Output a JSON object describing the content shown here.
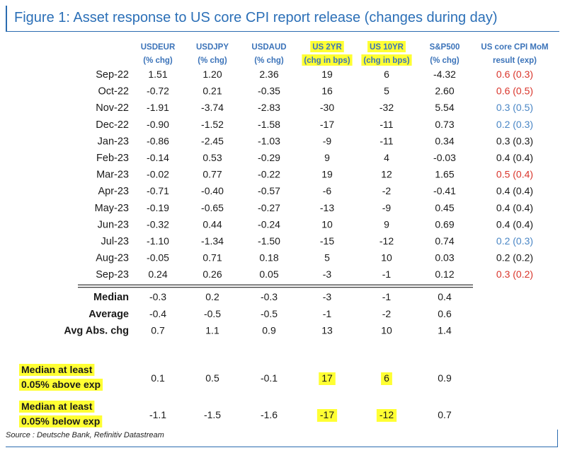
{
  "title": "Figure 1: Asset response to US core CPI report release (changes during day)",
  "source": "Source : Deutsche Bank, Refinitiv Datastream",
  "colors": {
    "title": "#2b6fb7",
    "header": "#3b73b9",
    "highlight": "#ffff33",
    "above_exp": "#d9352b",
    "below_exp": "#4a86c5",
    "in_line": "#1a1a1a"
  },
  "chart_data": {
    "type": "table",
    "columns": [
      {
        "name": "USDEUR",
        "unit": "(% chg)",
        "highlight": false
      },
      {
        "name": "USDJPY",
        "unit": "(% chg)",
        "highlight": false
      },
      {
        "name": "USDAUD",
        "unit": "(% chg)",
        "highlight": false
      },
      {
        "name": "US 2YR",
        "unit": "(chg in bps)",
        "highlight": true
      },
      {
        "name": "US 10YR",
        "unit": "(chg in bps)",
        "highlight": true
      },
      {
        "name": "S&P500",
        "unit": "(% chg)",
        "highlight": false
      },
      {
        "name": "US core CPI MoM",
        "unit": "result (exp)",
        "highlight": false
      }
    ],
    "rows": [
      {
        "label": "Sep-22",
        "values": [
          "1.51",
          "1.20",
          "2.36",
          "19",
          "6",
          "-4.32",
          "0.6 (0.3)"
        ],
        "cpi_vs_exp": "above"
      },
      {
        "label": "Oct-22",
        "values": [
          "-0.72",
          "0.21",
          "-0.35",
          "16",
          "5",
          "2.60",
          "0.6 (0.5)"
        ],
        "cpi_vs_exp": "above"
      },
      {
        "label": "Nov-22",
        "values": [
          "-1.91",
          "-3.74",
          "-2.83",
          "-30",
          "-32",
          "5.54",
          "0.3 (0.5)"
        ],
        "cpi_vs_exp": "below"
      },
      {
        "label": "Dec-22",
        "values": [
          "-0.90",
          "-1.52",
          "-1.58",
          "-17",
          "-11",
          "0.73",
          "0.2 (0.3)"
        ],
        "cpi_vs_exp": "below"
      },
      {
        "label": "Jan-23",
        "values": [
          "-0.86",
          "-2.45",
          "-1.03",
          "-9",
          "-11",
          "0.34",
          "0.3 (0.3)"
        ],
        "cpi_vs_exp": "inline"
      },
      {
        "label": "Feb-23",
        "values": [
          "-0.14",
          "0.53",
          "-0.29",
          "9",
          "4",
          "-0.03",
          "0.4 (0.4)"
        ],
        "cpi_vs_exp": "inline"
      },
      {
        "label": "Mar-23",
        "values": [
          "-0.02",
          "0.77",
          "-0.22",
          "19",
          "12",
          "1.65",
          "0.5 (0.4)"
        ],
        "cpi_vs_exp": "above"
      },
      {
        "label": "Apr-23",
        "values": [
          "-0.71",
          "-0.40",
          "-0.57",
          "-6",
          "-2",
          "-0.41",
          "0.4 (0.4)"
        ],
        "cpi_vs_exp": "inline"
      },
      {
        "label": "May-23",
        "values": [
          "-0.19",
          "-0.65",
          "-0.27",
          "-13",
          "-9",
          "0.45",
          "0.4 (0.4)"
        ],
        "cpi_vs_exp": "inline"
      },
      {
        "label": "Jun-23",
        "values": [
          "-0.32",
          "0.44",
          "-0.24",
          "10",
          "9",
          "0.69",
          "0.4 (0.4)"
        ],
        "cpi_vs_exp": "inline"
      },
      {
        "label": "Jul-23",
        "values": [
          "-1.10",
          "-1.34",
          "-1.50",
          "-15",
          "-12",
          "0.74",
          "0.2 (0.3)"
        ],
        "cpi_vs_exp": "below"
      },
      {
        "label": "Aug-23",
        "values": [
          "-0.05",
          "0.71",
          "0.18",
          "5",
          "10",
          "0.03",
          "0.2 (0.2)"
        ],
        "cpi_vs_exp": "inline"
      },
      {
        "label": "Sep-23",
        "values": [
          "0.24",
          "0.26",
          "0.05",
          "-3",
          "-1",
          "0.12",
          "0.3 (0.2)"
        ],
        "cpi_vs_exp": "above"
      }
    ],
    "summary": [
      {
        "label": "Median",
        "values": [
          "-0.3",
          "0.2",
          "-0.3",
          "-3",
          "-1",
          "0.4"
        ]
      },
      {
        "label": "Average",
        "values": [
          "-0.4",
          "-0.5",
          "-0.5",
          "-1",
          "-2",
          "0.6"
        ]
      },
      {
        "label": "Avg Abs. chg",
        "values": [
          "0.7",
          "1.1",
          "0.9",
          "13",
          "10",
          "1.4"
        ]
      }
    ],
    "conditional": [
      {
        "label_lines": [
          "Median at least",
          "0.05% above exp"
        ],
        "values": [
          "0.1",
          "0.5",
          "-0.1",
          "17",
          "6",
          "0.9"
        ],
        "highlight_cols": [
          3,
          4
        ]
      },
      {
        "label_lines": [
          "Median at least",
          "0.05% below exp"
        ],
        "values": [
          "-1.1",
          "-1.5",
          "-1.6",
          "-17",
          "-12",
          "0.7"
        ],
        "highlight_cols": [
          3,
          4
        ]
      }
    ]
  }
}
